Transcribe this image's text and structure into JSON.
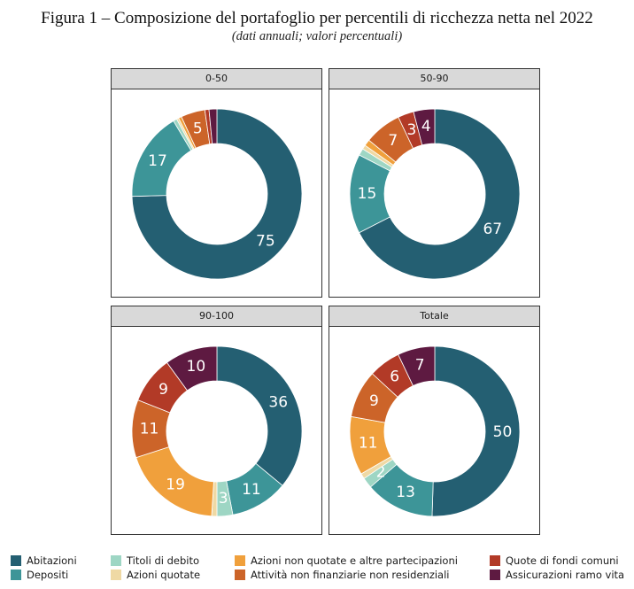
{
  "title": "Figura 1 – Composizione del portafoglio per percentili di ricchezza netta nel 2022",
  "subtitle": "(dati annuali; valori percentuali)",
  "categories": [
    {
      "name": "Abitazioni",
      "color": "#245F72"
    },
    {
      "name": "Depositi",
      "color": "#3D9598"
    },
    {
      "name": "Titoli di debito",
      "color": "#9ED6C4"
    },
    {
      "name": "Azioni quotate",
      "color": "#EFD9A4"
    },
    {
      "name": "Azioni non quotate e altre partecipazioni",
      "color": "#F0A03C"
    },
    {
      "name": "Attività non finanziarie non residenziali",
      "color": "#CC6429"
    },
    {
      "name": "Quote di fondi comuni",
      "color": "#B23A27"
    },
    {
      "name": "Assicurazioni ramo vita",
      "color": "#5E1A41"
    }
  ],
  "chart_data": [
    {
      "type": "pie",
      "title": "0-50",
      "series": [
        {
          "name": "Abitazioni",
          "value": 75.0
        },
        {
          "name": "Depositi",
          "value": 17.0
        },
        {
          "name": "Titoli di debito",
          "value": 0.7
        },
        {
          "name": "Azioni quotate",
          "value": 0.4
        },
        {
          "name": "Azioni non quotate e altre partecipazioni",
          "value": 0.6
        },
        {
          "name": "Attività non finanziarie non residenziali",
          "value": 4.6
        },
        {
          "name": "Quote di fondi comuni",
          "value": 0.8
        },
        {
          "name": "Assicurazioni ramo vita",
          "value": 1.5
        }
      ],
      "labels": {
        "Abitazioni": "75",
        "Depositi": "17",
        "Attività non finanziarie non residenziali": "5"
      }
    },
    {
      "type": "pie",
      "title": "50-90",
      "series": [
        {
          "name": "Abitazioni",
          "value": 67.0
        },
        {
          "name": "Depositi",
          "value": 15.0
        },
        {
          "name": "Titoli di debito",
          "value": 1.3
        },
        {
          "name": "Azioni quotate",
          "value": 0.8
        },
        {
          "name": "Azioni non quotate e altre partecipazioni",
          "value": 1.2
        },
        {
          "name": "Attività non finanziarie non residenziali",
          "value": 7.0
        },
        {
          "name": "Quote di fondi comuni",
          "value": 3.0
        },
        {
          "name": "Assicurazioni ramo vita",
          "value": 4.0
        }
      ],
      "labels": {
        "Abitazioni": "67",
        "Depositi": "15",
        "Attività non finanziarie non residenziali": "7",
        "Quote di fondi comuni": "3",
        "Assicurazioni ramo vita": "4"
      }
    },
    {
      "type": "pie",
      "title": "90-100",
      "series": [
        {
          "name": "Abitazioni",
          "value": 36.0
        },
        {
          "name": "Depositi",
          "value": 11.0
        },
        {
          "name": "Titoli di debito",
          "value": 3.0
        },
        {
          "name": "Azioni quotate",
          "value": 1.0
        },
        {
          "name": "Azioni non quotate e altre partecipazioni",
          "value": 19.0
        },
        {
          "name": "Attività non finanziarie non residenziali",
          "value": 11.0
        },
        {
          "name": "Quote di fondi comuni",
          "value": 9.0
        },
        {
          "name": "Assicurazioni ramo vita",
          "value": 10.0
        }
      ],
      "labels": {
        "Abitazioni": "36",
        "Depositi": "11",
        "Titoli di debito": "3",
        "Azioni non quotate e altre partecipazioni": "19",
        "Attività non finanziarie non residenziali": "11",
        "Quote di fondi comuni": "9",
        "Assicurazioni ramo vita": "10"
      }
    },
    {
      "type": "pie",
      "title": "Totale",
      "series": [
        {
          "name": "Abitazioni",
          "value": 50.0
        },
        {
          "name": "Depositi",
          "value": 13.0
        },
        {
          "name": "Titoli di debito",
          "value": 2.0
        },
        {
          "name": "Azioni quotate",
          "value": 1.0
        },
        {
          "name": "Azioni non quotate e altre partecipazioni",
          "value": 11.0
        },
        {
          "name": "Attività non finanziarie non residenziali",
          "value": 9.0
        },
        {
          "name": "Quote di fondi comuni",
          "value": 6.0
        },
        {
          "name": "Assicurazioni ramo vita",
          "value": 7.0
        }
      ],
      "labels": {
        "Abitazioni": "50",
        "Depositi": "13",
        "Titoli di debito": "2",
        "Azioni non quotate e altre partecipazioni": "11",
        "Attività non finanziarie non residenziali": "9",
        "Quote di fondi comuni": "6",
        "Assicurazioni ramo vita": "7"
      }
    }
  ]
}
